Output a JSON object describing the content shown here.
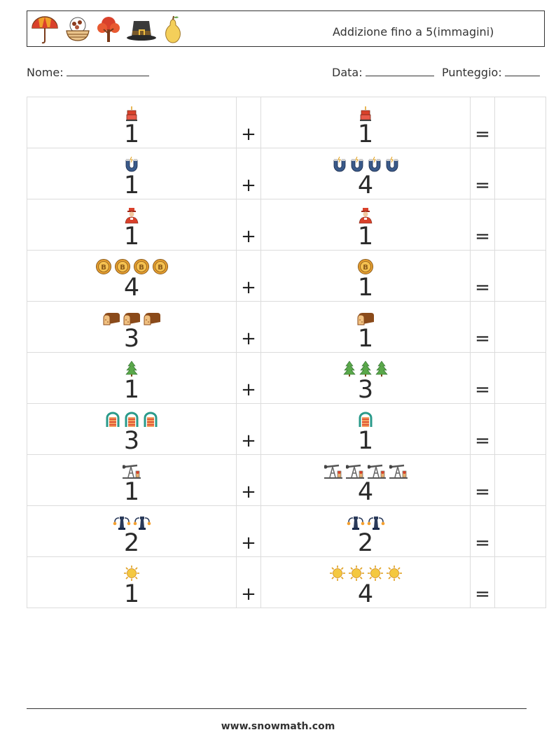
{
  "header": {
    "title": "Addizione fino a 5(immagini)",
    "icons": [
      "umbrella-icon",
      "chestnut-bowl-icon",
      "autumn-tree-icon",
      "pilgrim-hat-icon",
      "pear-icon"
    ]
  },
  "info": {
    "name_label": "Nome:",
    "date_label": "Data:",
    "score_label": "Punteggio:"
  },
  "operators": {
    "plus": "+",
    "equals": "="
  },
  "rows": [
    {
      "a": 1,
      "a_icon": "cake",
      "b": 1,
      "b_icon": "cake"
    },
    {
      "a": 1,
      "a_icon": "magnet",
      "b": 4,
      "b_icon": "magnet"
    },
    {
      "a": 1,
      "a_icon": "pilgrim",
      "b": 1,
      "b_icon": "pilgrim"
    },
    {
      "a": 4,
      "a_icon": "coin",
      "b": 1,
      "b_icon": "coin"
    },
    {
      "a": 3,
      "a_icon": "bread",
      "b": 1,
      "b_icon": "bread"
    },
    {
      "a": 1,
      "a_icon": "pine",
      "b": 3,
      "b_icon": "pine"
    },
    {
      "a": 3,
      "a_icon": "sled",
      "b": 1,
      "b_icon": "sled"
    },
    {
      "a": 1,
      "a_icon": "pumpjack",
      "b": 4,
      "b_icon": "pumpjack"
    },
    {
      "a": 2,
      "a_icon": "lamp",
      "b": 2,
      "b_icon": "lamp"
    },
    {
      "a": 1,
      "a_icon": "sun",
      "b": 4,
      "b_icon": "sun"
    }
  ],
  "colors": {
    "border": "#dcdcdc",
    "text": "#2a2a2a",
    "header_border": "#333333"
  },
  "footer": {
    "url": "www.snowmath.com"
  }
}
